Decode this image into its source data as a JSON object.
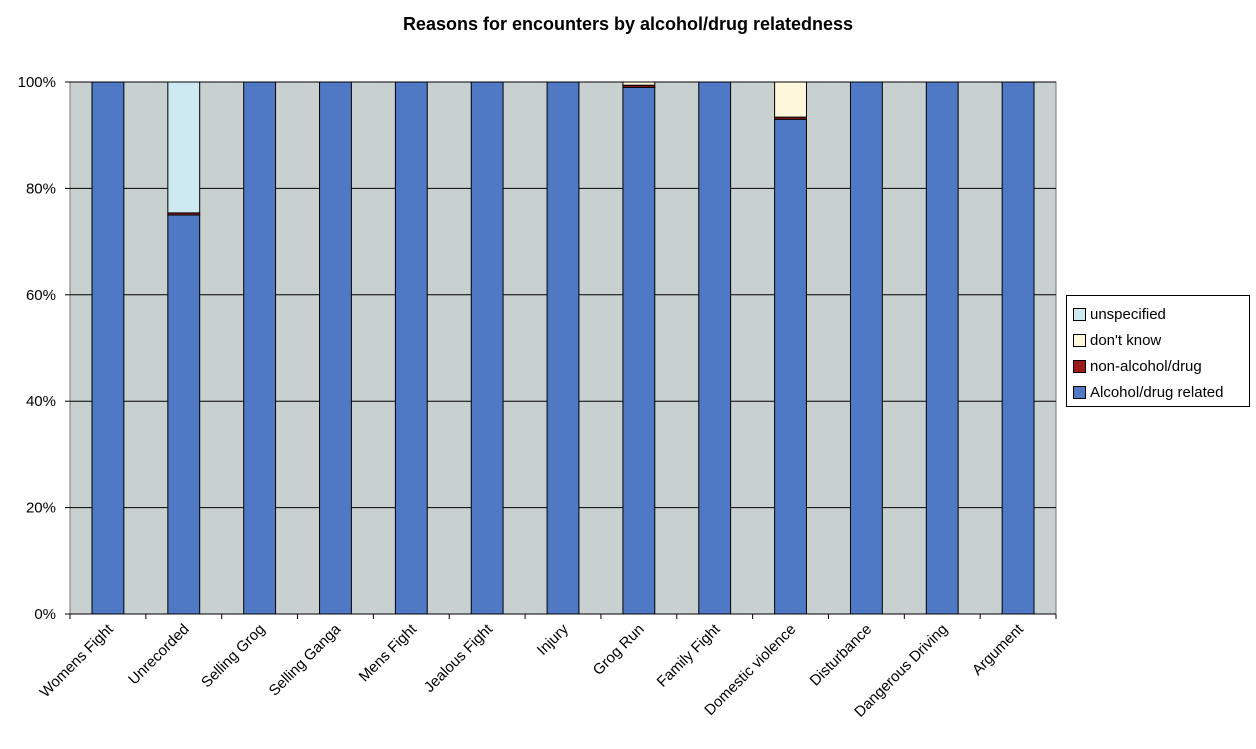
{
  "chart_data": {
    "type": "bar",
    "stacked": true,
    "title": "Reasons for encounters by alcohol/drug relatedness",
    "xlabel": "",
    "ylabel": "",
    "ylim": [
      0,
      100
    ],
    "yticks": [
      "0%",
      "20%",
      "40%",
      "60%",
      "80%",
      "100%"
    ],
    "grid": true,
    "legend_position": "right",
    "categories": [
      "Womens Fight",
      "Unrecorded",
      "Selling Grog",
      "Selling Ganga",
      "Mens Fight",
      "Jealous Fight",
      "Injury",
      "Grog Run",
      "Family Fight",
      "Domestic violence",
      "Disturbance",
      "Dangerous Driving",
      "Argument"
    ],
    "series": [
      {
        "name": "Alcohol/drug related",
        "color": "#4f79c4",
        "values": [
          100,
          75,
          100,
          100,
          100,
          100,
          100,
          99,
          100,
          93,
          100,
          100,
          100
        ]
      },
      {
        "name": "non-alcohol/drug",
        "color": "#9b1b1b",
        "values": [
          0,
          0.4,
          0,
          0,
          0,
          0,
          0,
          0.4,
          0,
          0.4,
          0,
          0,
          0
        ]
      },
      {
        "name": "don't know",
        "color": "#fff8dc",
        "values": [
          0,
          0,
          0,
          0,
          0,
          0,
          0,
          0.6,
          0,
          6.6,
          0,
          0,
          0
        ]
      },
      {
        "name": "unspecified",
        "color": "#cdeaf2",
        "values": [
          0,
          24.6,
          0,
          0,
          0,
          0,
          0,
          0,
          0,
          0,
          0,
          0,
          0
        ]
      }
    ],
    "legend_order": [
      "unspecified",
      "don't know",
      "non-alcohol/drug",
      "Alcohol/drug related"
    ],
    "plot_background": "#c8d0d0"
  }
}
